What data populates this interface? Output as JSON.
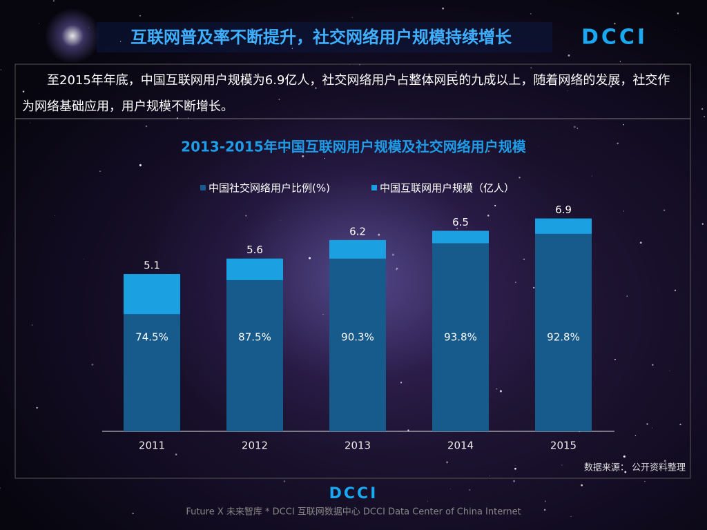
{
  "header": {
    "title": "互联网普及率不断提升，社交网络用户规模持续增长",
    "logo": "DCCI"
  },
  "body": "至2015年年底，中国互联网用户规模为6.9亿人，社交网络用户占整体网民的九成以上，随着网络的发展，社交作为网络基础应用，用户规模不断增长。",
  "chart_data": {
    "type": "overlap-bar",
    "title": "2013-2015年中国互联网用户规模及社交网络用户规模",
    "categories": [
      "2011",
      "2012",
      "2013",
      "2014",
      "2015"
    ],
    "series": [
      {
        "name": "中国社交网络用户比例(%)",
        "color": "#175b8c",
        "values": [
          74.5,
          87.5,
          90.3,
          93.8,
          92.8
        ],
        "value_labels": [
          "74.5%",
          "87.5%",
          "90.3%",
          "93.8%",
          "92.8%"
        ]
      },
      {
        "name": "中国互联网用户规模（亿人）",
        "color": "#1ba1e2",
        "values": [
          5.1,
          5.6,
          6.2,
          6.5,
          6.9
        ]
      }
    ],
    "source": "数据来源： 公开资料整理"
  },
  "footer": {
    "logo": "DCCI",
    "text": "Future X 未来智库 * DCCI 互联网数据中心 DCCI Data Center of China Internet"
  }
}
